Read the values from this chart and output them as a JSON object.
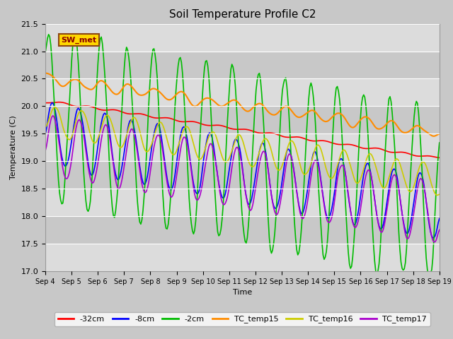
{
  "title": "Soil Temperature Profile C2",
  "xlabel": "Time",
  "ylabel": "Temperature (C)",
  "ylim": [
    17.0,
    21.5
  ],
  "annotation_text": "SW_met",
  "annotation_color": "#8B0000",
  "annotation_bg": "#FFD700",
  "annotation_edge": "#8B4513",
  "fig_facecolor": "#C8C8C8",
  "plot_bg": "#DCDCDC",
  "series_colors": {
    "-32cm": "#FF0000",
    "-8cm": "#0000FF",
    "-2cm": "#00BB00",
    "TC_temp15": "#FF8C00",
    "TC_temp16": "#CCCC00",
    "TC_temp17": "#AA00CC"
  },
  "legend_labels": [
    "-32cm",
    "-8cm",
    "-2cm",
    "TC_temp15",
    "TC_temp16",
    "TC_temp17"
  ],
  "legend_colors": [
    "#FF0000",
    "#0000FF",
    "#00BB00",
    "#FF8C00",
    "#CCCC00",
    "#AA00CC"
  ],
  "yticks": [
    17.0,
    17.5,
    18.0,
    18.5,
    19.0,
    19.5,
    20.0,
    20.5,
    21.0,
    21.5
  ],
  "band_colors": [
    "#DCDCDC",
    "#C8C8C8"
  ],
  "linewidth": 1.2,
  "n_days": 15,
  "n_pts": 360
}
